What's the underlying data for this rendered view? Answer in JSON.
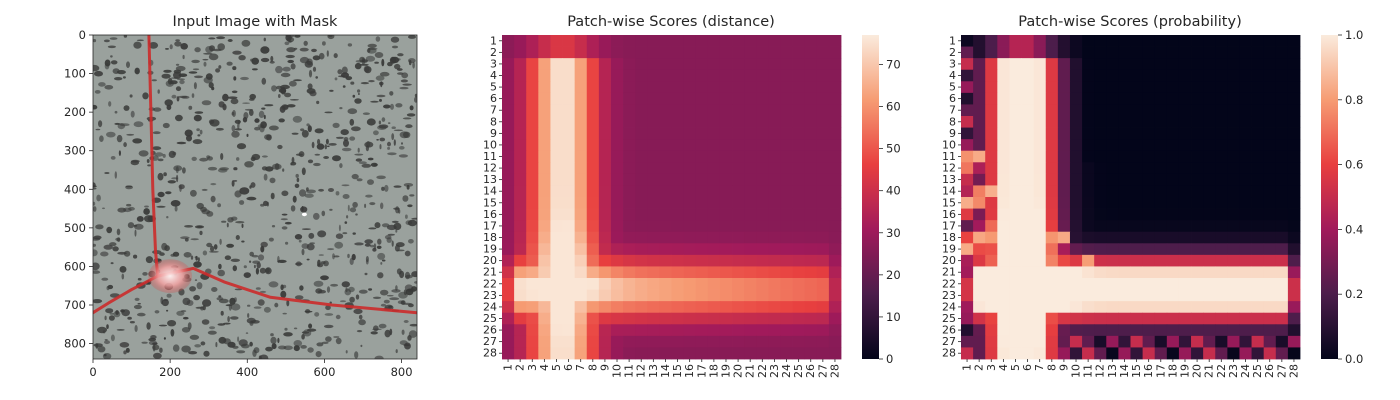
{
  "chart_data": [
    {
      "type": "image",
      "title": "Input Image with Mask",
      "xlim": [
        0,
        840
      ],
      "ylim": [
        0,
        840
      ],
      "xticks": [
        0,
        200,
        400,
        600,
        800
      ],
      "yticks": [
        0,
        100,
        200,
        300,
        400,
        500,
        600,
        700,
        800
      ],
      "annotations": {
        "mask_color": "#cc2b2b",
        "crack_paths": [
          [
            [
              145,
              0
            ],
            [
              150,
              200
            ],
            [
              155,
              400
            ],
            [
              162,
              560
            ],
            [
              168,
              625
            ]
          ],
          [
            [
              168,
              625
            ],
            [
              260,
              605
            ],
            [
              340,
              640
            ],
            [
              460,
              680
            ],
            [
              620,
              700
            ],
            [
              840,
              720
            ]
          ],
          [
            [
              168,
              625
            ],
            [
              100,
              660
            ],
            [
              40,
              695
            ],
            [
              0,
              720
            ]
          ]
        ],
        "blob_center": [
          200,
          625
        ],
        "speck_center": [
          548,
          465
        ]
      },
      "background_color": "#9aa19d",
      "spot_color": "#393a39"
    },
    {
      "type": "heatmap",
      "title": "Patch-wise Scores (distance)",
      "rows": 28,
      "cols": 28,
      "tick_labels": [
        "1",
        "2",
        "3",
        "4",
        "5",
        "6",
        "7",
        "8",
        "9",
        "10",
        "11",
        "12",
        "13",
        "14",
        "15",
        "16",
        "17",
        "18",
        "19",
        "20",
        "21",
        "22",
        "23",
        "24",
        "25",
        "26",
        "27",
        "28"
      ],
      "colorbar": {
        "min": 0,
        "max": 77,
        "ticks": [
          0,
          10,
          20,
          30,
          40,
          50,
          60,
          70
        ]
      },
      "colormap": [
        "#03051a",
        "#4c1d4b",
        "#a11a5b",
        "#e83f3f",
        "#f69c73",
        "#faebdd"
      ],
      "model": {
        "floor": 26,
        "band_peak": 76,
        "vertical_band_col": 5.5,
        "horizontal_band_row": 22.5
      }
    },
    {
      "type": "heatmap",
      "title": "Patch-wise Scores (probability)",
      "rows": 28,
      "cols": 28,
      "tick_labels": [
        "1",
        "2",
        "3",
        "4",
        "5",
        "6",
        "7",
        "8",
        "9",
        "10",
        "11",
        "12",
        "13",
        "14",
        "15",
        "16",
        "17",
        "18",
        "19",
        "20",
        "21",
        "22",
        "23",
        "24",
        "25",
        "26",
        "27",
        "28"
      ],
      "colorbar": {
        "min": 0.0,
        "max": 1.0,
        "ticks": [
          "0.0",
          "0.2",
          "0.4",
          "0.6",
          "0.8",
          "1.0"
        ]
      },
      "colormap": [
        "#03051a",
        "#4c1d4b",
        "#a11a5b",
        "#e83f3f",
        "#f69c73",
        "#faebdd"
      ],
      "model": {
        "floor": 0.0,
        "band_peak": 1.0,
        "vertical_band_col": 5.5,
        "horizontal_band_row": 22.5
      }
    }
  ]
}
